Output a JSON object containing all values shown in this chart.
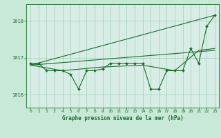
{
  "title": "Graphe pression niveau de la mer (hPa)",
  "background_color": "#c8e8d8",
  "plot_bg_color": "#d8ede6",
  "grid_color": "#a0ccb8",
  "line_color": "#1a6b2a",
  "xlim": [
    -0.5,
    23.5
  ],
  "ylim": [
    1015.65,
    1018.45
  ],
  "yticks": [
    1016,
    1017,
    1018
  ],
  "xticks": [
    0,
    1,
    2,
    3,
    4,
    5,
    6,
    7,
    8,
    9,
    10,
    11,
    12,
    13,
    14,
    15,
    16,
    17,
    18,
    19,
    20,
    21,
    22,
    23
  ],
  "series": {
    "line1_x": [
      0,
      1,
      2,
      3,
      4,
      5,
      6,
      7,
      8,
      9,
      10,
      11,
      12,
      13,
      14,
      15,
      16,
      17,
      18,
      19,
      20,
      21,
      22,
      23
    ],
    "line1_y": [
      1016.85,
      1016.85,
      1016.65,
      1016.65,
      1016.65,
      1016.55,
      1016.15,
      1016.65,
      1016.65,
      1016.7,
      1016.85,
      1016.85,
      1016.85,
      1016.85,
      1016.85,
      1016.15,
      1016.15,
      1016.65,
      1016.65,
      1016.65,
      1017.25,
      1016.85,
      1017.85,
      1018.15
    ],
    "line2_x": [
      0,
      23
    ],
    "line2_y": [
      1016.8,
      1018.15
    ],
    "line3_x": [
      0,
      23
    ],
    "line3_y": [
      1016.8,
      1017.2
    ],
    "line4_x": [
      0,
      4,
      9,
      14,
      18,
      21,
      23
    ],
    "line4_y": [
      1016.8,
      1016.65,
      1016.75,
      1016.8,
      1016.65,
      1017.2,
      1017.25
    ]
  }
}
